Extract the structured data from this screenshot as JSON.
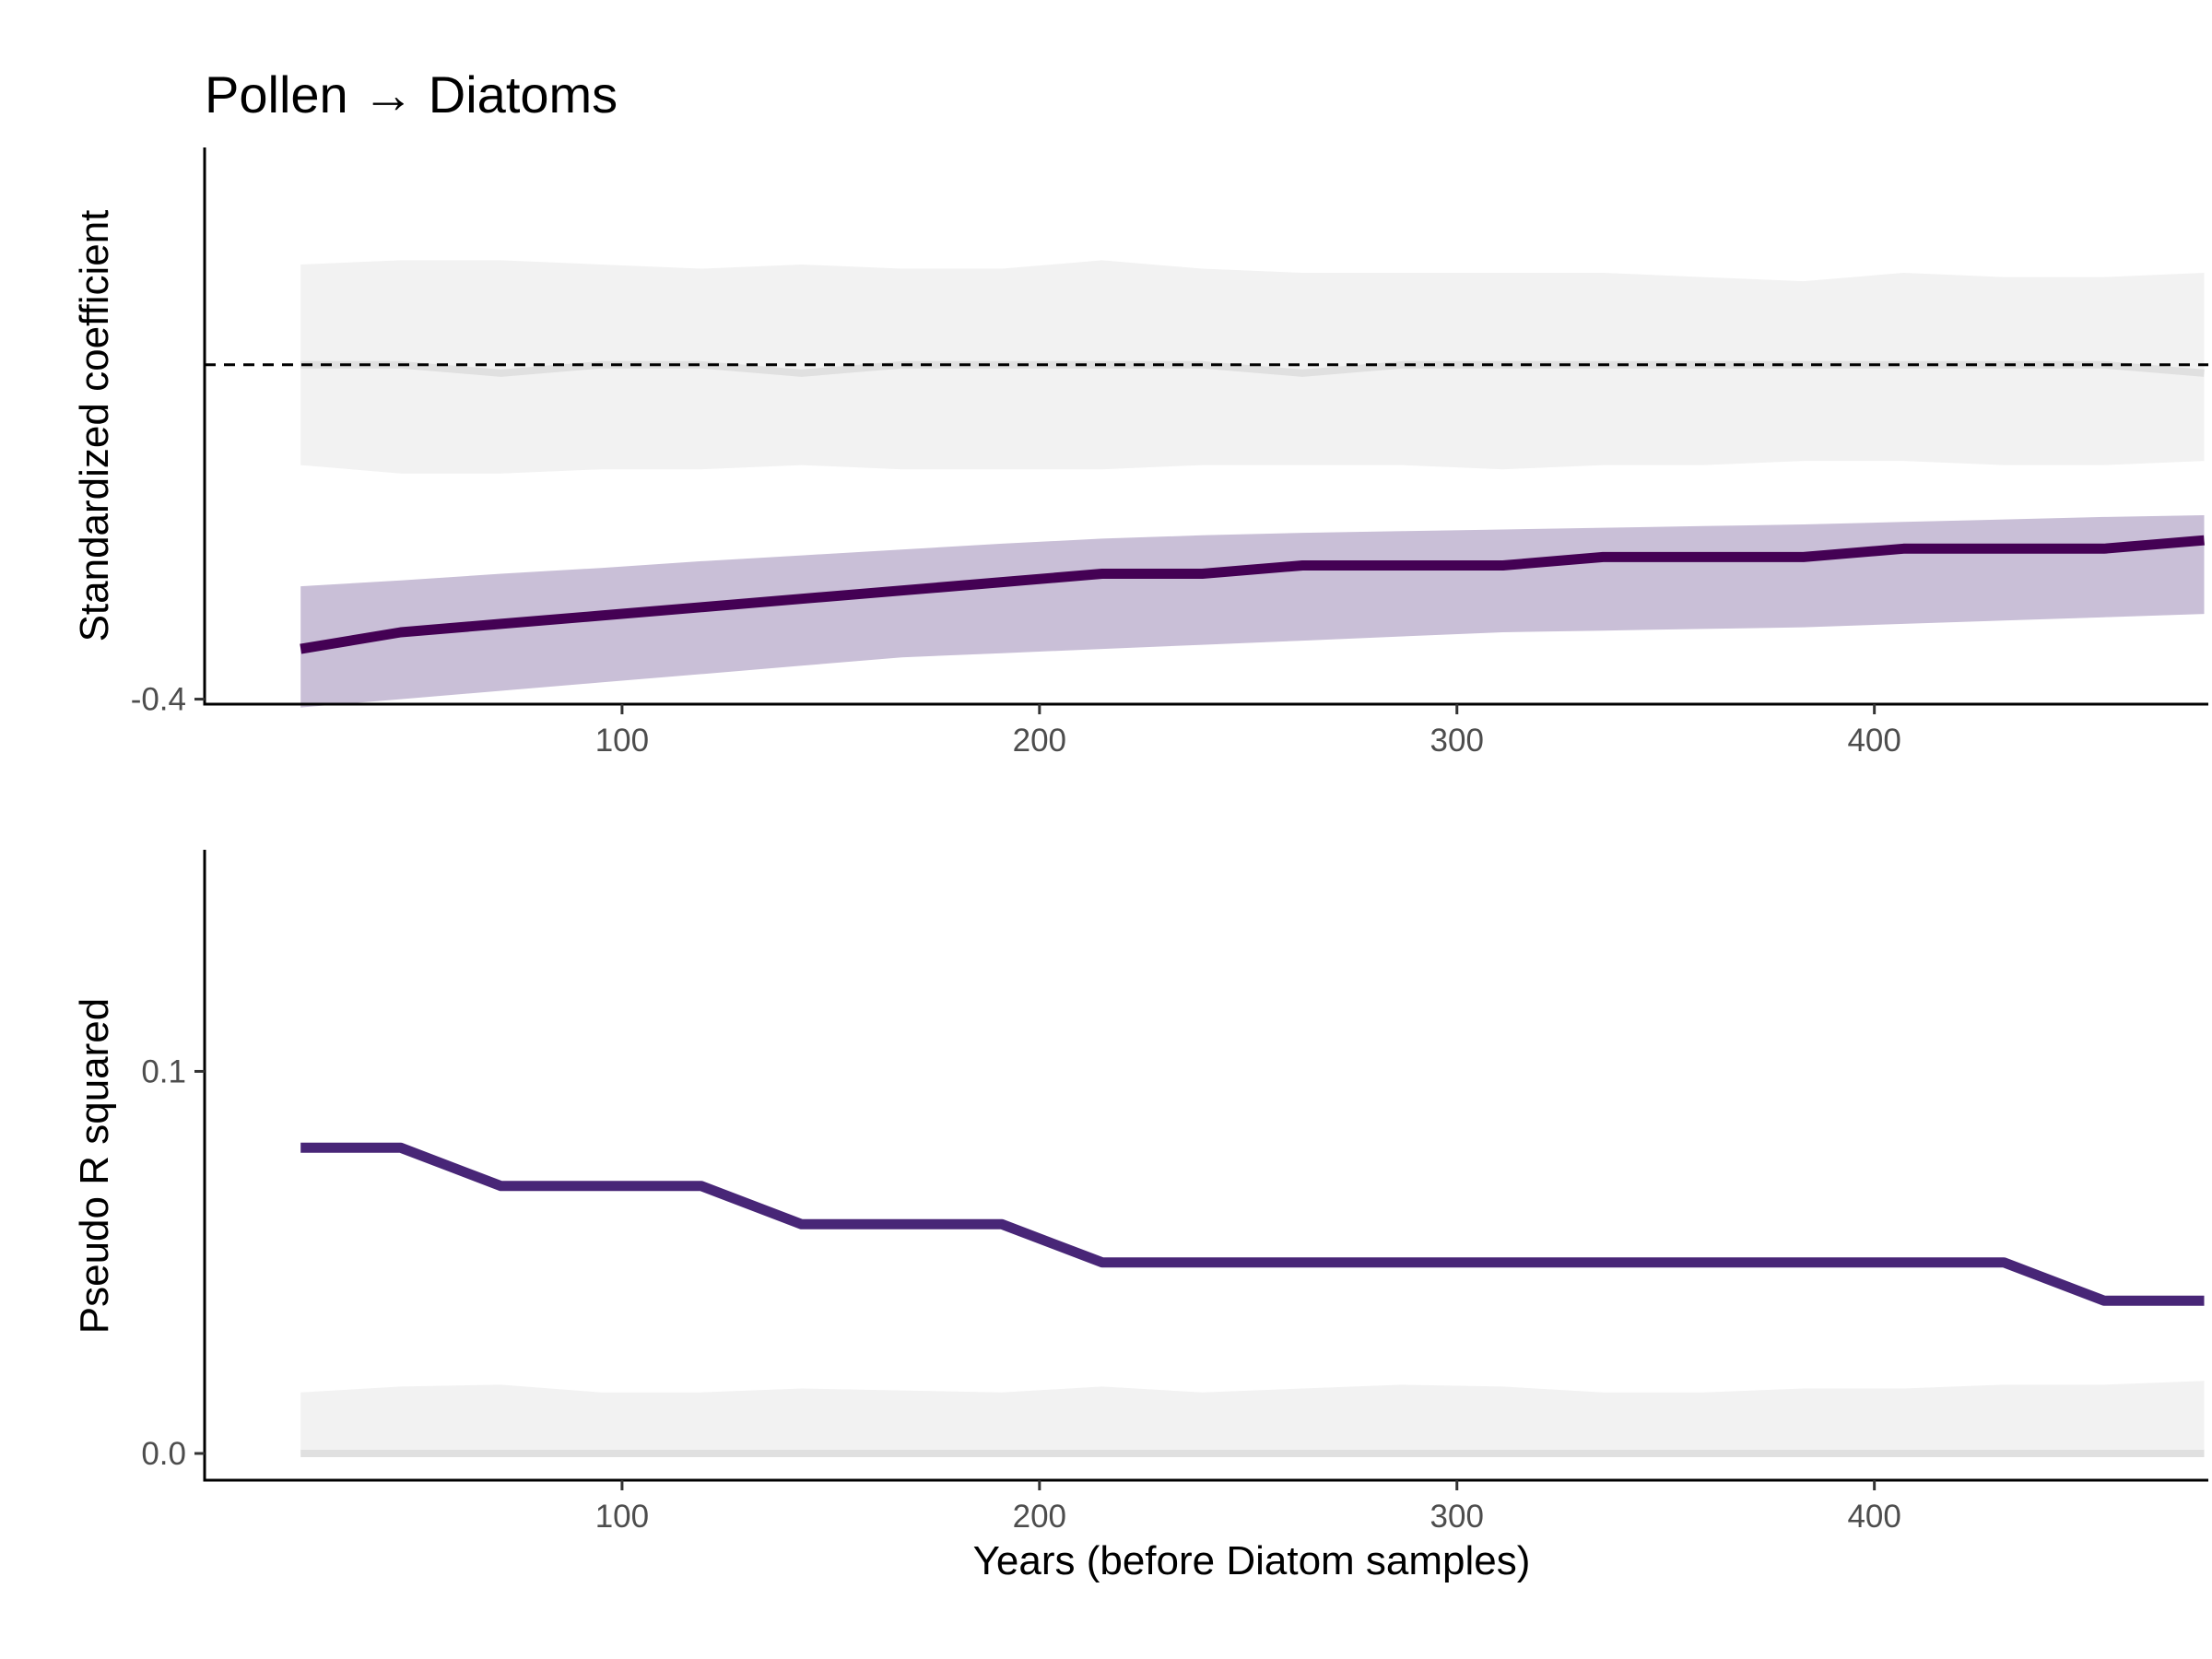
{
  "chart_data": [
    {
      "type": "line",
      "title": "Pollen → Diatoms",
      "xlabel": "",
      "ylabel": "Standardized coefficient",
      "xlim": [
        0,
        480
      ],
      "ylim": [
        -0.406,
        0.26
      ],
      "x_ticks": [
        100,
        200,
        300,
        400
      ],
      "x_tick_labels": [
        "100",
        "200",
        "300",
        "400"
      ],
      "y_ticks": [
        -0.4
      ],
      "y_tick_labels": [
        "-0.4"
      ],
      "grid": false,
      "legend": "none",
      "reference_line": {
        "y": 0,
        "style": "dashed",
        "color": "#000000"
      },
      "x": [
        23,
        47,
        71,
        95,
        119,
        143,
        167,
        191,
        215,
        239,
        263,
        287,
        311,
        335,
        359,
        383,
        407,
        431,
        455,
        479
      ],
      "series": [
        {
          "values": [
            -0.34,
            -0.32,
            -0.31,
            -0.3,
            -0.29,
            -0.28,
            -0.27,
            -0.26,
            -0.25,
            -0.25,
            -0.24,
            -0.24,
            -0.24,
            -0.23,
            -0.23,
            -0.23,
            -0.22,
            -0.22,
            -0.22,
            -0.21
          ],
          "lower": [
            -0.41,
            -0.4,
            -0.39,
            -0.38,
            -0.37,
            -0.36,
            -0.35,
            -0.345,
            -0.34,
            -0.335,
            -0.33,
            -0.325,
            -0.32,
            -0.318,
            -0.316,
            -0.314,
            -0.31,
            -0.306,
            -0.302,
            -0.298
          ],
          "upper": [
            -0.265,
            -0.258,
            -0.25,
            -0.243,
            -0.235,
            -0.228,
            -0.221,
            -0.214,
            -0.208,
            -0.204,
            -0.201,
            -0.199,
            -0.197,
            -0.195,
            -0.193,
            -0.191,
            -0.188,
            -0.185,
            -0.182,
            -0.18
          ],
          "color": "#440154",
          "band_color": "#c9bfd7"
        }
      ],
      "null_band": {
        "values": [
          0,
          0,
          -0.01,
          0,
          0,
          -0.01,
          0,
          0,
          0,
          0,
          -0.01,
          0,
          0,
          0,
          0,
          0,
          0,
          0,
          0,
          -0.01
        ],
        "lower": [
          -0.12,
          -0.13,
          -0.13,
          -0.125,
          -0.125,
          -0.12,
          -0.125,
          -0.125,
          -0.125,
          -0.12,
          -0.12,
          -0.12,
          -0.125,
          -0.12,
          -0.12,
          -0.115,
          -0.115,
          -0.12,
          -0.12,
          -0.115
        ],
        "upper": [
          0.12,
          0.125,
          0.125,
          0.12,
          0.115,
          0.12,
          0.115,
          0.115,
          0.125,
          0.115,
          0.11,
          0.11,
          0.11,
          0.11,
          0.105,
          0.1,
          0.11,
          0.105,
          0.105,
          0.11
        ],
        "color": "#f2f2f2",
        "line_color": "#e0e0e0"
      }
    },
    {
      "type": "line",
      "title": "",
      "xlabel": "Years (before Diatom samples)",
      "ylabel": "Pseudo R squared",
      "xlim": [
        0,
        480
      ],
      "ylim": [
        -0.007,
        0.158
      ],
      "x_ticks": [
        100,
        200,
        300,
        400
      ],
      "x_tick_labels": [
        "100",
        "200",
        "300",
        "400"
      ],
      "y_ticks": [
        0.0,
        0.1
      ],
      "y_tick_labels": [
        "0.0",
        "0.1"
      ],
      "grid": false,
      "legend": "none",
      "x": [
        23,
        47,
        71,
        95,
        119,
        143,
        167,
        191,
        215,
        239,
        263,
        287,
        311,
        335,
        359,
        383,
        407,
        431,
        455,
        479
      ],
      "series": [
        {
          "values": [
            0.08,
            0.08,
            0.07,
            0.07,
            0.07,
            0.06,
            0.06,
            0.06,
            0.05,
            0.05,
            0.05,
            0.05,
            0.05,
            0.05,
            0.05,
            0.05,
            0.05,
            0.05,
            0.04,
            0.04
          ],
          "color": "#482677"
        }
      ],
      "null_band": {
        "values": [
          0,
          0,
          0,
          0,
          0,
          0,
          0,
          0,
          0,
          0,
          0,
          0,
          0,
          0,
          0,
          0,
          0,
          0,
          0,
          0
        ],
        "lower": [
          0,
          0,
          0,
          0,
          0,
          0,
          0,
          0,
          0,
          0,
          0,
          0,
          0,
          0,
          0,
          0,
          0,
          0,
          0,
          0
        ],
        "upper": [
          0.016,
          0.0175,
          0.018,
          0.016,
          0.016,
          0.017,
          0.0165,
          0.016,
          0.0175,
          0.016,
          0.017,
          0.018,
          0.0175,
          0.016,
          0.016,
          0.017,
          0.017,
          0.018,
          0.018,
          0.019
        ],
        "color": "#f2f2f2",
        "line_color": "#e0e0e0"
      }
    }
  ]
}
